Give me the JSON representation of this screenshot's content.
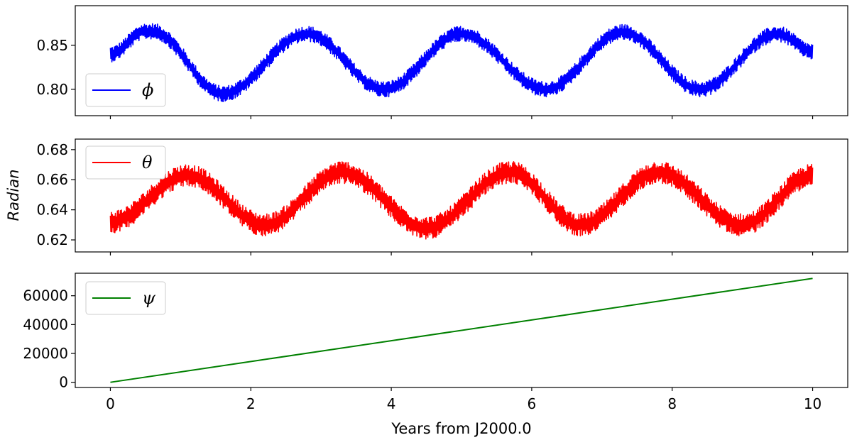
{
  "chart_data": [
    {
      "type": "line",
      "panel": "top",
      "series": [
        {
          "name": "ϕ",
          "color": "#0000ff",
          "noise_amplitude": 0.009,
          "keypoints": [
            [
              0.0,
              0.84
            ],
            [
              0.5,
              0.866
            ],
            [
              0.6,
              0.866
            ],
            [
              1.6,
              0.795
            ],
            [
              2.8,
              0.863
            ],
            [
              3.9,
              0.8
            ],
            [
              5.0,
              0.863
            ],
            [
              6.2,
              0.8
            ],
            [
              7.3,
              0.865
            ],
            [
              8.4,
              0.8
            ],
            [
              9.5,
              0.863
            ],
            [
              10.0,
              0.843
            ]
          ]
        }
      ],
      "xlim": [
        -0.5,
        10.5
      ],
      "ylim": [
        0.77,
        0.895
      ],
      "yticks": [
        0.8,
        0.85
      ],
      "ytick_labels": [
        "0.80",
        "0.85"
      ],
      "xticks": [
        0,
        2,
        4,
        6,
        8,
        10
      ],
      "legend": "lower-left"
    },
    {
      "type": "line",
      "panel": "middle",
      "series": [
        {
          "name": "θ",
          "color": "#ff0000",
          "noise_amplitude": 0.0075,
          "keypoints": [
            [
              0.0,
              0.632
            ],
            [
              1.1,
              0.663
            ],
            [
              2.2,
              0.63
            ],
            [
              3.3,
              0.665
            ],
            [
              4.5,
              0.628
            ],
            [
              5.7,
              0.665
            ],
            [
              6.7,
              0.63
            ],
            [
              7.8,
              0.665
            ],
            [
              9.0,
              0.63
            ],
            [
              10.0,
              0.663
            ]
          ]
        }
      ],
      "xlim": [
        -0.5,
        10.5
      ],
      "ylim": [
        0.612,
        0.687
      ],
      "yticks": [
        0.62,
        0.64,
        0.66,
        0.68
      ],
      "ytick_labels": [
        "0.62",
        "0.64",
        "0.66",
        "0.68"
      ],
      "xticks": [
        0,
        2,
        4,
        6,
        8,
        10
      ],
      "ylabel": "Radian",
      "legend": "top-left"
    },
    {
      "type": "line",
      "panel": "bottom",
      "series": [
        {
          "name": "ψ",
          "color": "#008000",
          "points": [
            [
              0,
              0
            ],
            [
              10,
              72000
            ]
          ]
        }
      ],
      "xlim": [
        -0.5,
        10.5
      ],
      "ylim": [
        -3600,
        75600
      ],
      "yticks": [
        0,
        20000,
        40000,
        60000
      ],
      "ytick_labels": [
        "0",
        "20000",
        "40000",
        "60000"
      ],
      "xticks": [
        0,
        2,
        4,
        6,
        8,
        10
      ],
      "xtick_labels": [
        "0",
        "2",
        "4",
        "6",
        "8",
        "10"
      ],
      "xlabel": "Years from J2000.0",
      "legend": "top-left"
    }
  ]
}
